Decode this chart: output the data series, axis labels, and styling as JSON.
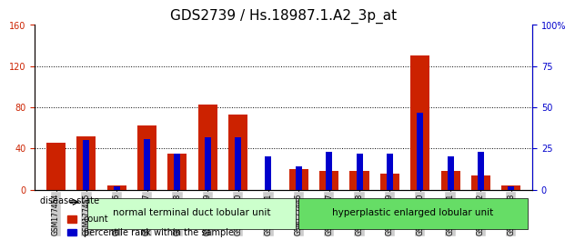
{
  "title": "GDS2739 / Hs.18987.1.A2_3p_at",
  "samples": [
    "GSM177454",
    "GSM177455",
    "GSM177456",
    "GSM177457",
    "GSM177458",
    "GSM177459",
    "GSM177460",
    "GSM177461",
    "GSM177446",
    "GSM177447",
    "GSM177448",
    "GSM177449",
    "GSM177450",
    "GSM177451",
    "GSM177452",
    "GSM177453"
  ],
  "counts": [
    46,
    52,
    4,
    62,
    35,
    83,
    73,
    0,
    20,
    18,
    18,
    16,
    130,
    18,
    14,
    4
  ],
  "percentiles": [
    0,
    30,
    2,
    31,
    22,
    32,
    32,
    20,
    14,
    23,
    22,
    22,
    47,
    20,
    23,
    2
  ],
  "group1_label": "normal terminal duct lobular unit",
  "group2_label": "hyperplastic enlarged lobular unit",
  "group1_count": 8,
  "group2_count": 8,
  "disease_state_label": "disease state",
  "legend_count": "count",
  "legend_percentile": "percentile rank within the sample",
  "ylim_left": [
    0,
    160
  ],
  "ylim_right": [
    0,
    100
  ],
  "yticks_left": [
    0,
    40,
    80,
    120,
    160
  ],
  "yticks_right": [
    0,
    25,
    50,
    75,
    100
  ],
  "ytick_labels_right": [
    "0",
    "25",
    "50",
    "75",
    "100%"
  ],
  "bar_color_red": "#cc2200",
  "bar_color_blue": "#0000cc",
  "group1_bg": "#ccffcc",
  "group2_bg": "#66dd66",
  "tick_bg": "#cccccc",
  "grid_color": "#000000",
  "left_axis_color": "#cc2200",
  "right_axis_color": "#0000cc",
  "bar_width": 0.35,
  "title_fontsize": 11,
  "tick_fontsize": 7,
  "label_fontsize": 8,
  "small_fontsize": 7.5
}
